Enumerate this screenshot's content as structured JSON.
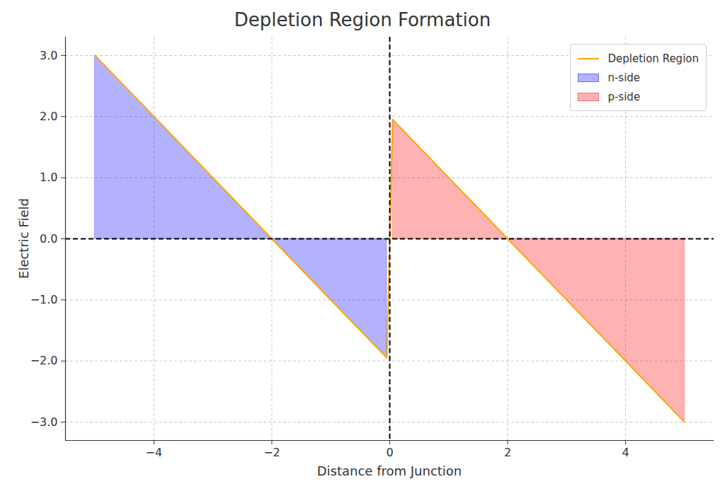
{
  "chart_data": {
    "type": "line",
    "title": "Depletion Region Formation",
    "x_label": "Distance from Junction",
    "y_label": "Electric Field",
    "x": [
      -5,
      -2,
      -0.05,
      0.05,
      2,
      5
    ],
    "series": [
      {
        "name": "Depletion Region",
        "type": "line",
        "color": "#ffa500",
        "values": [
          3,
          0,
          -1.95,
          1.95,
          0,
          -3
        ]
      },
      {
        "name": "n-side",
        "type": "area",
        "color": "#0000ff",
        "values": [
          3,
          0,
          -1.95,
          null,
          null,
          null
        ]
      },
      {
        "name": "p-side",
        "type": "area",
        "color": "#ff0000",
        "values": [
          null,
          null,
          null,
          1.95,
          0,
          -3
        ]
      }
    ],
    "xlim": [
      -5.5,
      5.5
    ],
    "ylim": [
      -3.3,
      3.3
    ],
    "xticks": [
      -4,
      -2,
      0,
      2,
      4
    ],
    "yticks": [
      -3,
      -2,
      -1,
      0,
      1,
      2,
      3
    ],
    "hlines": [
      0
    ],
    "vlines": [
      0
    ],
    "grid": true,
    "legend": "upper right"
  }
}
